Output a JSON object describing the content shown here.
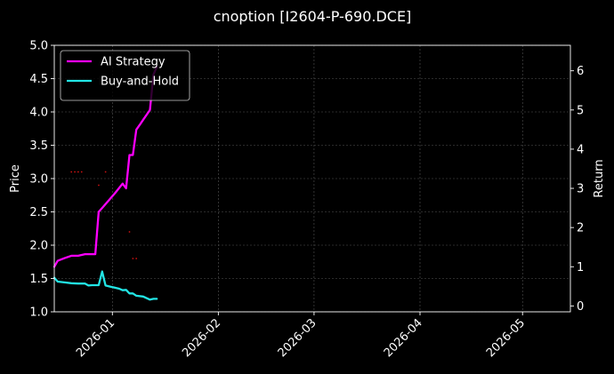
{
  "chart_data": {
    "type": "line",
    "title": "cnoption [I2604-P-690.DCE]",
    "xlabel": "",
    "ylabel": "Price",
    "y2label": "Return",
    "xlim": [
      "2025-12-15",
      "2026-05-15"
    ],
    "ylim": [
      1.0,
      5.0
    ],
    "y2lim": [
      -0.15,
      6.65
    ],
    "x_ticks": [
      "2026-01",
      "2026-02",
      "2026-03",
      "2026-04",
      "2026-05"
    ],
    "y_ticks": [
      "1.0",
      "1.5",
      "2.0",
      "2.5",
      "3.0",
      "3.5",
      "4.0",
      "4.5",
      "5.0"
    ],
    "y2_ticks": [
      "0",
      "1",
      "2",
      "3",
      "4",
      "5",
      "6"
    ],
    "grid": true,
    "legend": "top-left",
    "series": [
      {
        "name": "AI Strategy",
        "axis": "right",
        "color": "#ff00ff",
        "x": [
          "2025-12-15",
          "2025-12-16",
          "2025-12-18",
          "2025-12-20",
          "2025-12-22",
          "2025-12-24",
          "2025-12-26",
          "2025-12-27",
          "2025-12-28",
          "2025-12-29",
          "2025-12-31",
          "2026-01-02",
          "2026-01-04",
          "2026-01-05",
          "2026-01-06",
          "2026-01-07",
          "2026-01-08",
          "2026-01-09",
          "2026-01-10",
          "2026-01-12",
          "2026-01-13",
          "2026-01-14"
        ],
        "values": [
          1.0,
          1.15,
          1.22,
          1.28,
          1.28,
          1.32,
          1.32,
          1.32,
          2.4,
          2.5,
          2.7,
          2.9,
          3.12,
          3.0,
          3.85,
          3.85,
          4.5,
          4.62,
          4.75,
          5.0,
          5.9,
          6.1
        ]
      },
      {
        "name": "Buy-and-Hold",
        "axis": "right",
        "color": "#22e5e5",
        "x": [
          "2025-12-15",
          "2025-12-16",
          "2025-12-18",
          "2025-12-20",
          "2025-12-22",
          "2025-12-24",
          "2025-12-25",
          "2025-12-26",
          "2025-12-28",
          "2025-12-29",
          "2025-12-30",
          "2026-01-01",
          "2026-01-03",
          "2026-01-04",
          "2026-01-05",
          "2026-01-06",
          "2026-01-07",
          "2026-01-08",
          "2026-01-10",
          "2026-01-11",
          "2026-01-12",
          "2026-01-13",
          "2026-01-14"
        ],
        "values": [
          0.72,
          0.62,
          0.6,
          0.58,
          0.57,
          0.57,
          0.52,
          0.53,
          0.53,
          0.88,
          0.52,
          0.48,
          0.44,
          0.4,
          0.41,
          0.32,
          0.32,
          0.26,
          0.24,
          0.2,
          0.16,
          0.18,
          0.18
        ]
      },
      {
        "name": "",
        "type": "scatter",
        "axis": "left",
        "color": "#cc1111",
        "x": [
          "2025-12-20",
          "2025-12-21",
          "2025-12-22",
          "2025-12-23",
          "2025-12-28",
          "2025-12-30",
          "2026-01-06",
          "2026-01-07",
          "2026-01-08"
        ],
        "values": [
          3.1,
          3.1,
          3.1,
          3.1,
          2.9,
          3.1,
          2.2,
          1.8,
          1.8
        ]
      }
    ]
  }
}
